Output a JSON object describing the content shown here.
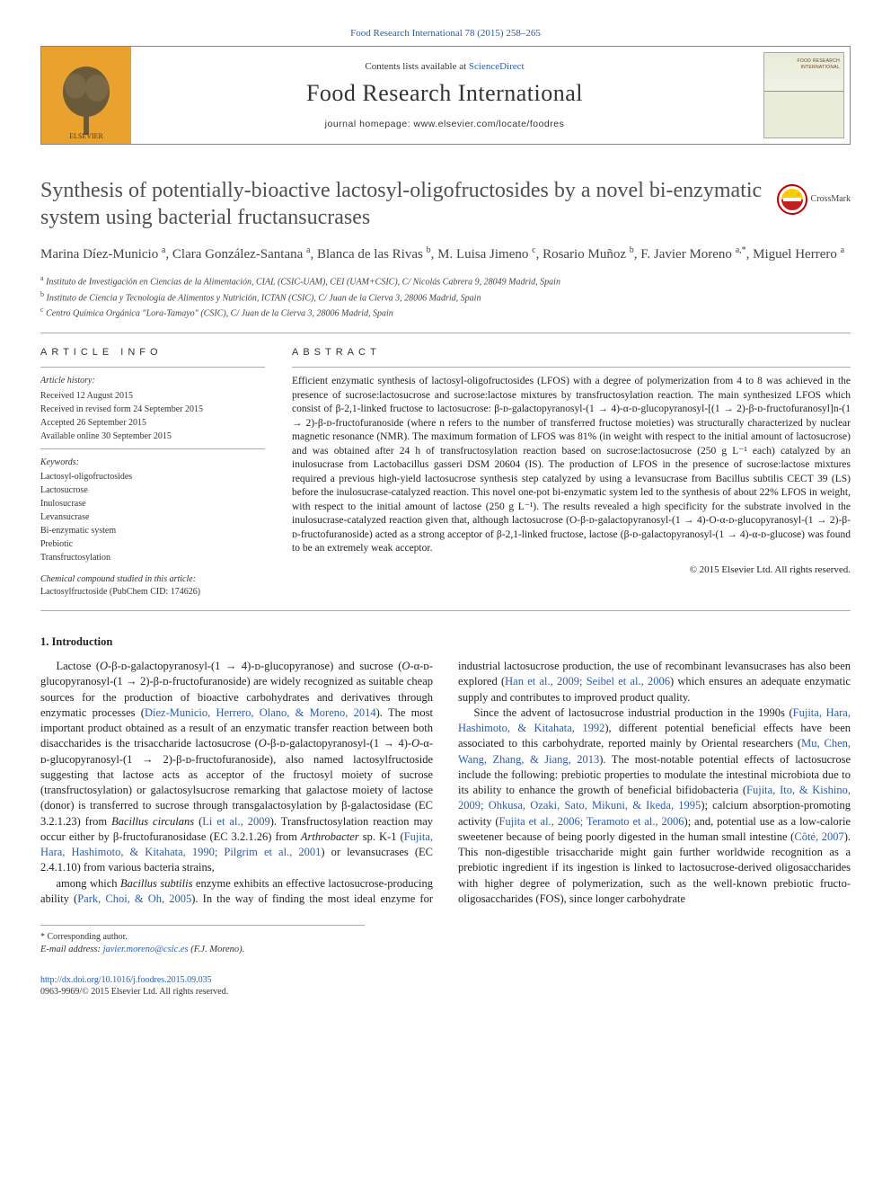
{
  "topLink": {
    "text": "Food Research International 78 (2015) 258–265"
  },
  "banner": {
    "contentsLine_prefix": "Contents lists available at ",
    "contentsLine_link": "ScienceDirect",
    "journalName": "Food Research International",
    "journalHome": "journal homepage: www.elsevier.com/locate/foodres",
    "publisherLabel": "ELSEVIER",
    "coverLabel": "FOOD RESEARCH\nINTERNATIONAL"
  },
  "crossmark": {
    "label": "CrossMark"
  },
  "paper": {
    "title": "Synthesis of potentially-bioactive lactosyl-oligofructosides by a novel bi-enzymatic system using bacterial fructansucrases",
    "authorsHtml": "Marina Díez-Municio <sup>a</sup>, Clara González-Santana <sup>a</sup>, Blanca de las Rivas <sup>b</sup>, M. Luisa Jimeno <sup>c</sup>, Rosario Muñoz <sup>b</sup>, F. Javier Moreno <sup>a,*</sup>, Miguel Herrero <sup>a</sup>",
    "affiliations": [
      {
        "sup": "a",
        "text": "Instituto de Investigación en Ciencias de la Alimentación, CIAL (CSIC-UAM), CEI (UAM+CSIC), C/ Nicolás Cabrera 9, 28049 Madrid, Spain"
      },
      {
        "sup": "b",
        "text": "Instituto de Ciencia y Tecnología de Alimentos y Nutrición, ICTAN (CSIC), C/ Juan de la Cierva 3, 28006 Madrid, Spain"
      },
      {
        "sup": "c",
        "text": "Centro Química Orgánica \"Lora-Tamayo\" (CSIC), C/ Juan de la Cierva 3, 28006 Madrid, Spain"
      }
    ]
  },
  "articleInfo": {
    "heading": "article info",
    "historyHead": "Article history:",
    "history": [
      "Received 12 August 2015",
      "Received in revised form 24 September 2015",
      "Accepted 26 September 2015",
      "Available online 30 September 2015"
    ],
    "keywordsHead": "Keywords:",
    "keywords": [
      "Lactosyl-oligofructosides",
      "Lactosucrose",
      "Inulosucrase",
      "Levansucrase",
      "Bi-enzymatic system",
      "Prebiotic",
      "Transfructosylation"
    ],
    "compoundHead": "Chemical compound studied in this article:",
    "compound": "Lactosylfructoside (PubChem CID: 174626)"
  },
  "abstract": {
    "heading": "abstract",
    "text": "Efficient enzymatic synthesis of lactosyl-oligofructosides (LFOS) with a degree of polymerization from 4 to 8 was achieved in the presence of sucrose:lactosucrose and sucrose:lactose mixtures by transfructosylation reaction. The main synthesized LFOS which consist of β-2,1-linked fructose to lactosucrose: β-ᴅ-galactopyranosyl-(1 → 4)-α-ᴅ-glucopyranosyl-[(1 → 2)-β-ᴅ-fructofuranosyl]n-(1 → 2)-β-ᴅ-fructofuranoside (where n refers to the number of transferred fructose moieties) was structurally characterized by nuclear magnetic resonance (NMR). The maximum formation of LFOS was 81% (in weight with respect to the initial amount of lactosucrose) and was obtained after 24 h of transfructosylation reaction based on sucrose:lactosucrose (250 g L⁻¹ each) catalyzed by an inulosucrase from Lactobacillus gasseri DSM 20604 (IS). The production of LFOS in the presence of sucrose:lactose mixtures required a previous high-yield lactosucrose synthesis step catalyzed by using a levansucrase from Bacillus subtilis CECT 39 (LS) before the inulosucrase-catalyzed reaction. This novel one-pot bi-enzymatic system led to the synthesis of about 22% LFOS in weight, with respect to the initial amount of lactose (250 g L⁻¹). The results revealed a high specificity for the substrate involved in the inulosucrase-catalyzed reaction given that, although lactosucrose (O-β-ᴅ-galactopyranosyl-(1 → 4)-O-α-ᴅ-glucopyranosyl-(1 → 2)-β-ᴅ-fructofuranoside) acted as a strong acceptor of β-2,1-linked fructose, lactose (β-ᴅ-galactopyranosyl-(1 → 4)-α-ᴅ-glucose) was found to be an extremely weak acceptor.",
    "copyright": "© 2015 Elsevier Ltd. All rights reserved."
  },
  "intro": {
    "heading": "1. Introduction",
    "col1p1_html": "Lactose (<i>O</i>-β-ᴅ-galactopyranosyl-(1 → 4)-ᴅ-glucopyranose) and sucrose (<i>O</i>-α-ᴅ-glucopyranosyl-(1 → 2)-β-ᴅ-fructofuranoside) are widely recognized as suitable cheap sources for the production of bioactive carbohydrates and derivatives through enzymatic processes (<a href='#'>Díez-Municio, Herrero, Olano, & Moreno, 2014</a>). The most important product obtained as a result of an enzymatic transfer reaction between both disaccharides is the trisaccharide lactosucrose (<i>O</i>-β-ᴅ-galactopyranosyl-(1 → 4)-<i>O</i>-α-ᴅ-glucopyranosyl-(1 → 2)-β-ᴅ-fructofuranoside), also named lactosylfructoside suggesting that lactose acts as acceptor of the fructosyl moiety of sucrose (transfructosylation) or galactosylsucrose remarking that galactose moiety of lactose (donor) is transferred to sucrose through transgalactosylation by β-galactosidase (EC 3.2.1.23) from <i>Bacillus circulans</i> (<a href='#'>Li et al., 2009</a>). Transfructosylation reaction may occur either by β-fructofuranosidase (EC 3.2.1.26) from <i>Arthrobacter</i> sp. K-1 (<a href='#'>Fujita, Hara, Hashimoto, & Kitahata, 1990; Pilgrim et al., 2001</a>) or levansucrases (EC 2.4.1.10) from various bacteria strains,",
    "col2p1_html": "among which <i>Bacillus subtilis</i> enzyme exhibits an effective lactosucrose-producing ability (<a href='#'>Park, Choi, & Oh, 2005</a>). In the way of finding the most ideal enzyme for industrial lactosucrose production, the use of recombinant levansucrases has also been explored (<a href='#'>Han et al., 2009; Seibel et al., 2006</a>) which ensures an adequate enzymatic supply and contributes to improved product quality.",
    "col2p2_html": "Since the advent of lactosucrose industrial production in the 1990s (<a href='#'>Fujita, Hara, Hashimoto, & Kitahata, 1992</a>), different potential beneficial effects have been associated to this carbohydrate, reported mainly by Oriental researchers (<a href='#'>Mu, Chen, Wang, Zhang, & Jiang, 2013</a>). The most-notable potential effects of lactosucrose include the following: prebiotic properties to modulate the intestinal microbiota due to its ability to enhance the growth of beneficial bifidobacteria (<a href='#'>Fujita, Ito, & Kishino, 2009; Ohkusa, Ozaki, Sato, Mikuni, & Ikeda, 1995</a>); calcium absorption-promoting activity (<a href='#'>Fujita et al., 2006; Teramoto et al., 2006</a>); and, potential use as a low-calorie sweetener because of being poorly digested in the human small intestine (<a href='#'>Côté, 2007</a>). This non-digestible trisaccharide might gain further worldwide recognition as a prebiotic ingredient if its ingestion is linked to lactosucrose-derived oligosaccharides with higher degree of polymerization, such as the well-known prebiotic fructo-oligosaccharides (FOS), since longer carbohydrate"
  },
  "footer": {
    "corresp": "* Corresponding author.",
    "emailLabel": "E-mail address:",
    "email": "javier.moreno@csic.es",
    "emailSuffix": "(F.J. Moreno).",
    "doi": "http://dx.doi.org/10.1016/j.foodres.2015.09.035",
    "issn": "0963-9969/© 2015 Elsevier Ltd. All rights reserved."
  },
  "colors": {
    "link": "#2a5db0",
    "bannerLeft": "#eaa22f",
    "text": "#222222",
    "heading": "#505050",
    "rule": "#aaaaaa"
  }
}
